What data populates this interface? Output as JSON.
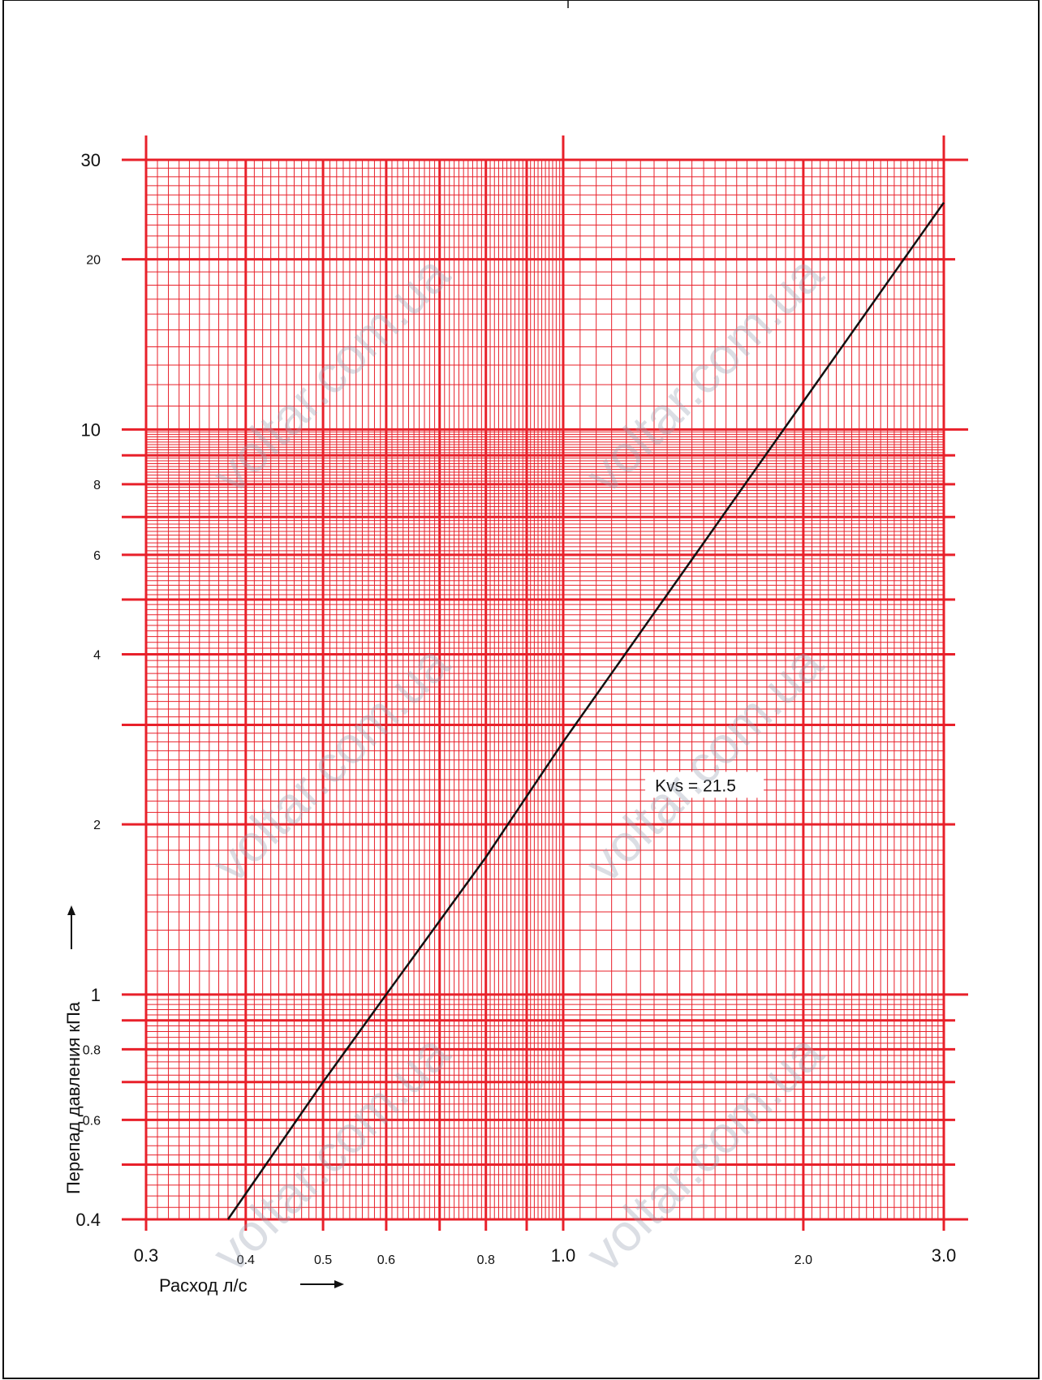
{
  "chart_data": {
    "type": "line",
    "title": "",
    "xlabel": "Расход л/с",
    "ylabel": "Перепад давления кПа",
    "x_scale": "log",
    "y_scale": "log",
    "xlim": [
      0.3,
      3.0
    ],
    "ylim": [
      0.4,
      30
    ],
    "grid": true,
    "grid_color": "#e8202a",
    "line_color": "#111111",
    "x_ticks": [
      {
        "value": 0.3,
        "label": "0.3",
        "major": true
      },
      {
        "value": 0.4,
        "label": "0.4",
        "major": false
      },
      {
        "value": 0.5,
        "label": "0.5",
        "major": false
      },
      {
        "value": 0.6,
        "label": "0.6",
        "major": false
      },
      {
        "value": 0.8,
        "label": "0.8",
        "major": false
      },
      {
        "value": 1.0,
        "label": "1.0",
        "major": true
      },
      {
        "value": 2.0,
        "label": "2.0",
        "major": false
      },
      {
        "value": 3.0,
        "label": "3.0",
        "major": true
      }
    ],
    "y_ticks": [
      {
        "value": 0.4,
        "label": "0.4",
        "major": true
      },
      {
        "value": 0.6,
        "label": "0.6",
        "major": false
      },
      {
        "value": 0.8,
        "label": "0.8",
        "major": false
      },
      {
        "value": 1,
        "label": "1",
        "major": true
      },
      {
        "value": 2,
        "label": "2",
        "major": false
      },
      {
        "value": 4,
        "label": "4",
        "major": false
      },
      {
        "value": 6,
        "label": "6",
        "major": false
      },
      {
        "value": 8,
        "label": "8",
        "major": false
      },
      {
        "value": 10,
        "label": "10",
        "major": true
      },
      {
        "value": 20,
        "label": "20",
        "major": false
      },
      {
        "value": 30,
        "label": "30",
        "major": true
      }
    ],
    "series": [
      {
        "x": [
          0.38,
          0.5,
          0.6,
          0.8,
          1.0,
          1.5,
          2.0,
          3.0
        ],
        "y": [
          0.4,
          0.7,
          1.0,
          1.75,
          2.8,
          6.3,
          11.2,
          25.2
        ]
      }
    ],
    "annotations": [
      {
        "text": "Kvs = 21.5",
        "x": 1.5,
        "y": 2.35
      }
    ]
  },
  "watermarks": [
    "voltar.com.ua",
    "voltar.com.ua",
    "voltar.com.ua",
    "voltar.com.ua",
    "voltar.com.ua",
    "voltar.com.ua"
  ]
}
